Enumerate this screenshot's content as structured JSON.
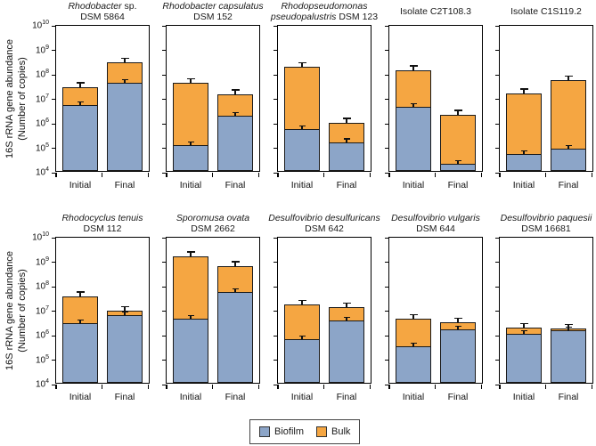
{
  "figure": {
    "y_axis_label_line1": "16S rRNA gene abundance",
    "y_axis_label_line2": "(Number of copies)",
    "ylabel": "16S rRNA gene abundance (Number of copies)",
    "y_tick_base": "10",
    "y_tick_exponents": [
      10,
      9,
      8,
      7,
      6,
      5,
      4
    ],
    "ylim": [
      10000.0,
      10000000000.0
    ],
    "x_categories": [
      "Initial",
      "Final"
    ],
    "legend": {
      "items": [
        {
          "label": "Biofilm",
          "color": "#8CA5C8"
        },
        {
          "label": "Bulk",
          "color": "#F5A642"
        }
      ]
    },
    "colors": {
      "biofilm": "#8CA5C8",
      "bulk": "#F5A642",
      "bar_border": "#1a1a1a",
      "axis": "#000000"
    }
  },
  "chart_data": [
    {
      "type": "bar",
      "stacked": true,
      "log_scale": true,
      "slug": "rhodobacter-sp-dsm-5864",
      "title": "Rhodobacter sp. DSM 5864",
      "title_lines": [
        [
          {
            "text": "Rhodobacter",
            "italic": true
          },
          {
            "text": " sp.",
            "italic": false
          }
        ],
        [
          {
            "text": "DSM 5864",
            "italic": false
          }
        ]
      ],
      "categories": [
        "Initial",
        "Final"
      ],
      "series": [
        {
          "name": "Biofilm",
          "values": [
            5000000.0,
            40000000.0
          ]
        },
        {
          "name": "Bulk",
          "values": [
            22000000.0,
            230000000.0
          ]
        }
      ],
      "ylim": [
        10000.0,
        10000000000.0
      ]
    },
    {
      "type": "bar",
      "stacked": true,
      "log_scale": true,
      "slug": "rhodobacter-capsulatus-dsm-152",
      "title": "Rhodobacter capsulatus DSM 152",
      "title_lines": [
        [
          {
            "text": "Rhodobacter capsulatus",
            "italic": true
          }
        ],
        [
          {
            "text": "DSM 152",
            "italic": false
          }
        ]
      ],
      "categories": [
        "Initial",
        "Final"
      ],
      "series": [
        {
          "name": "Biofilm",
          "values": [
            110000.0,
            1800000.0
          ]
        },
        {
          "name": "Bulk",
          "values": [
            40000000.0,
            12000000.0
          ]
        }
      ],
      "ylim": [
        10000.0,
        10000000000.0
      ]
    },
    {
      "type": "bar",
      "stacked": true,
      "log_scale": true,
      "slug": "rhodopseudomonas-pseudopalustris-dsm-123",
      "title": "Rhodopseudomonas pseudopalustris DSM 123",
      "title_lines": [
        [
          {
            "text": "Rhodopseudomonas",
            "italic": true
          }
        ],
        [
          {
            "text": "pseudopalustris",
            "italic": true
          },
          {
            "text": " DSM 123",
            "italic": false
          }
        ]
      ],
      "categories": [
        "Initial",
        "Final"
      ],
      "series": [
        {
          "name": "Biofilm",
          "values": [
            500000.0,
            150000.0
          ]
        },
        {
          "name": "Bulk",
          "values": [
            180000000.0,
            800000.0
          ]
        }
      ],
      "ylim": [
        10000.0,
        10000000000.0
      ]
    },
    {
      "type": "bar",
      "stacked": true,
      "log_scale": true,
      "slug": "isolate-c2t108-3",
      "title": "Isolate C2T108.3",
      "title_lines": [
        [
          {
            "text": "Isolate C2T108.3",
            "italic": false
          }
        ]
      ],
      "categories": [
        "Initial",
        "Final"
      ],
      "series": [
        {
          "name": "Biofilm",
          "values": [
            4000000.0,
            20000.0
          ]
        },
        {
          "name": "Bulk",
          "values": [
            130000000.0,
            2000000.0
          ]
        }
      ],
      "ylim": [
        10000.0,
        10000000000.0
      ]
    },
    {
      "type": "bar",
      "stacked": true,
      "log_scale": true,
      "slug": "isolate-c1s119-2",
      "title": "Isolate C1S119.2",
      "title_lines": [
        [
          {
            "text": "Isolate C1S119.2",
            "italic": false
          }
        ]
      ],
      "categories": [
        "Initial",
        "Final"
      ],
      "series": [
        {
          "name": "Biofilm",
          "values": [
            50000.0,
            80000.0
          ]
        },
        {
          "name": "Bulk",
          "values": [
            15000000.0,
            50000000.0
          ]
        }
      ],
      "ylim": [
        10000.0,
        10000000000.0
      ]
    },
    {
      "type": "bar",
      "stacked": true,
      "log_scale": true,
      "slug": "rhodocyclus-tenuis-dsm-112",
      "title": "Rhodocyclus tenuis DSM 112",
      "title_lines": [
        [
          {
            "text": "Rhodocyclus tenuis",
            "italic": true
          }
        ],
        [
          {
            "text": "DSM 112",
            "italic": false
          }
        ]
      ],
      "categories": [
        "Initial",
        "Final"
      ],
      "series": [
        {
          "name": "Biofilm",
          "values": [
            2700000.0,
            6000000.0
          ]
        },
        {
          "name": "Bulk",
          "values": [
            32000000.0,
            3000000.0
          ]
        }
      ],
      "ylim": [
        10000.0,
        10000000000.0
      ]
    },
    {
      "type": "bar",
      "stacked": true,
      "log_scale": true,
      "slug": "sporomusa-ovata-dsm-2662",
      "title": "Sporomusa ovata DSM 2662",
      "title_lines": [
        [
          {
            "text": "Sporomusa ovata",
            "italic": true
          }
        ],
        [
          {
            "text": "DSM 2662",
            "italic": false
          }
        ]
      ],
      "categories": [
        "Initial",
        "Final"
      ],
      "series": [
        {
          "name": "Biofilm",
          "values": [
            4000000.0,
            50000000.0
          ]
        },
        {
          "name": "Bulk",
          "values": [
            1500000000.0,
            550000000.0
          ]
        }
      ],
      "ylim": [
        10000.0,
        10000000000.0
      ]
    },
    {
      "type": "bar",
      "stacked": true,
      "log_scale": true,
      "slug": "desulfovibrio-desulfuricans-dsm-642",
      "title": "Desulfovibrio desulfuricans DSM 642",
      "title_lines": [
        [
          {
            "text": "Desulfovibrio desulfuricans",
            "italic": true
          }
        ],
        [
          {
            "text": "DSM 642",
            "italic": false
          }
        ]
      ],
      "categories": [
        "Initial",
        "Final"
      ],
      "series": [
        {
          "name": "Biofilm",
          "values": [
            600000.0,
            3500000.0
          ]
        },
        {
          "name": "Bulk",
          "values": [
            15000000.0,
            9000000.0
          ]
        }
      ],
      "ylim": [
        10000.0,
        10000000000.0
      ]
    },
    {
      "type": "bar",
      "stacked": true,
      "log_scale": true,
      "slug": "desulfovibrio-vulgaris-dsm-644",
      "title": "Desulfovibrio vulgaris DSM 644",
      "title_lines": [
        [
          {
            "text": "Desulfovibrio vulgaris",
            "italic": true
          }
        ],
        [
          {
            "text": "DSM 644",
            "italic": false
          }
        ]
      ],
      "categories": [
        "Initial",
        "Final"
      ],
      "series": [
        {
          "name": "Biofilm",
          "values": [
            300000.0,
            1500000.0
          ]
        },
        {
          "name": "Bulk",
          "values": [
            3700000.0,
            1500000.0
          ]
        }
      ],
      "ylim": [
        10000.0,
        10000000000.0
      ]
    },
    {
      "type": "bar",
      "stacked": true,
      "log_scale": true,
      "slug": "desulfovibrio-paquesii-dsm-16681",
      "title": "Desulfovibrio paquesii DSM 16681",
      "title_lines": [
        [
          {
            "text": "Desulfovibrio paquesii",
            "italic": true
          }
        ],
        [
          {
            "text": "DSM 16681",
            "italic": false
          }
        ]
      ],
      "categories": [
        "Initial",
        "Final"
      ],
      "series": [
        {
          "name": "Biofilm",
          "values": [
            1000000.0,
            1400000.0
          ]
        },
        {
          "name": "Bulk",
          "values": [
            800000.0,
            200000.0
          ]
        }
      ],
      "ylim": [
        10000.0,
        10000000000.0
      ]
    }
  ]
}
